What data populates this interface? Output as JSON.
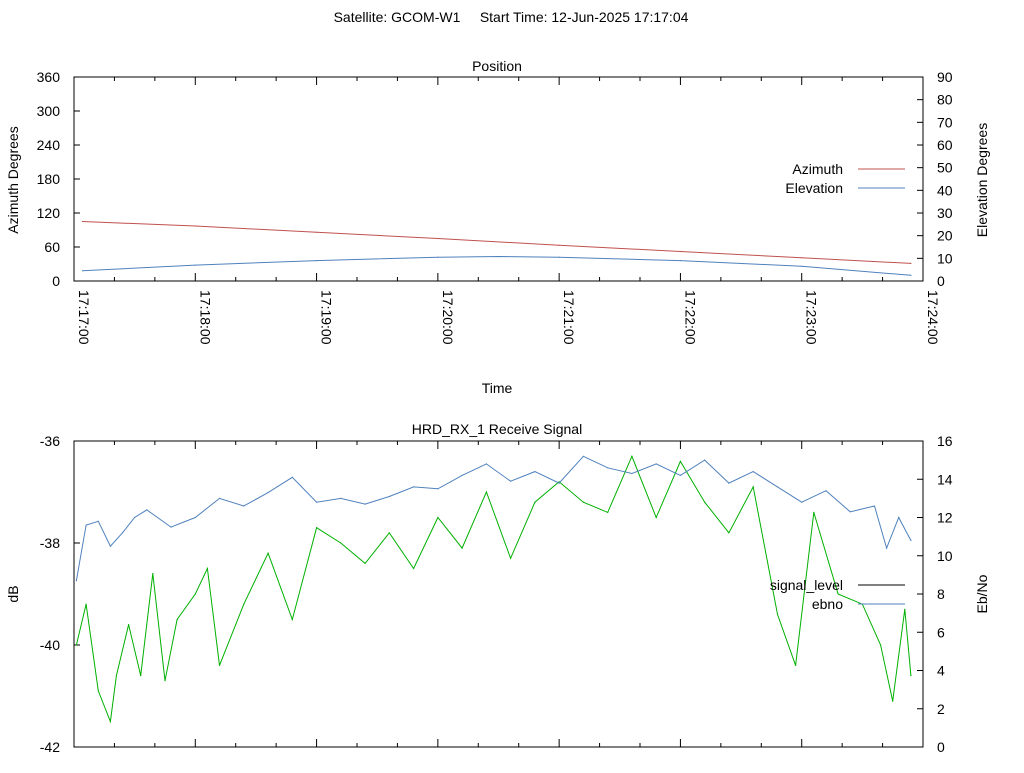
{
  "page": {
    "title": "Satellite: GCOM-W1     Start Time: 12-Jun-2025 17:17:04"
  },
  "chart_data": [
    {
      "type": "line",
      "title": "Position",
      "xlabel": "Time",
      "ylabel": "Azimuth Degrees",
      "y2label": "Elevation Degrees",
      "x_ticks": [
        "17:17:00",
        "17:18:00",
        "17:19:00",
        "17:20:00",
        "17:21:00",
        "17:22:00",
        "17:23:00",
        "17:24:00"
      ],
      "xlim_minutes": [
        0,
        7
      ],
      "ylim": [
        0,
        360
      ],
      "y_ticks": [
        0,
        60,
        120,
        180,
        240,
        300,
        360
      ],
      "y2lim": [
        0,
        90
      ],
      "y2_ticks": [
        0,
        10,
        20,
        30,
        40,
        50,
        60,
        70,
        80,
        90
      ],
      "legend_position": "right",
      "series": [
        {
          "name": "Azimuth",
          "axis": "y",
          "color": "#c0504d",
          "x_minutes": [
            0.07,
            1,
            2,
            3,
            4,
            5,
            6,
            6.9
          ],
          "values": [
            105,
            97,
            86,
            75,
            63,
            52,
            41,
            31
          ]
        },
        {
          "name": "Elevation",
          "axis": "y2",
          "color": "#4f81bd",
          "x_minutes": [
            0.07,
            1,
            2,
            3,
            3.5,
            4,
            5,
            6,
            6.9
          ],
          "values": [
            4.5,
            7,
            9,
            10.5,
            10.8,
            10.5,
            9,
            6.5,
            2.5
          ]
        }
      ]
    },
    {
      "type": "line",
      "title": "HRD_RX_1 Receive Signal",
      "ylabel": "dB",
      "y2label": "Eb/No",
      "ylim": [
        -42,
        -36
      ],
      "y_ticks": [
        -42,
        -40,
        -38,
        -36
      ],
      "y2lim": [
        0,
        16
      ],
      "y2_ticks": [
        0,
        2,
        4,
        6,
        8,
        10,
        12,
        14,
        16
      ],
      "xlim_minutes": [
        0,
        7
      ],
      "legend_position": "right",
      "series": [
        {
          "name": "signal_level",
          "axis": "y",
          "color": "#00b000",
          "x_minutes": [
            0.02,
            0.1,
            0.2,
            0.3,
            0.35,
            0.45,
            0.55,
            0.65,
            0.75,
            0.85,
            1.0,
            1.1,
            1.2,
            1.4,
            1.6,
            1.8,
            2.0,
            2.2,
            2.4,
            2.6,
            2.8,
            3.0,
            3.2,
            3.4,
            3.6,
            3.8,
            4.0,
            4.2,
            4.4,
            4.6,
            4.8,
            5.0,
            5.2,
            5.4,
            5.6,
            5.8,
            5.95,
            6.1,
            6.3,
            6.5,
            6.65,
            6.75,
            6.85,
            6.9
          ],
          "values": [
            -40.0,
            -39.2,
            -40.9,
            -41.5,
            -40.6,
            -39.6,
            -40.6,
            -38.6,
            -40.7,
            -39.5,
            -39.0,
            -38.5,
            -40.4,
            -39.2,
            -38.2,
            -39.5,
            -37.7,
            -38.0,
            -38.4,
            -37.8,
            -38.5,
            -37.5,
            -38.1,
            -37.0,
            -38.3,
            -37.2,
            -36.8,
            -37.2,
            -37.4,
            -36.3,
            -37.5,
            -36.4,
            -37.2,
            -37.8,
            -36.9,
            -39.4,
            -40.4,
            -37.4,
            -39.0,
            -39.2,
            -40.0,
            -41.1,
            -39.3,
            -40.6
          ]
        },
        {
          "name": "ebno",
          "axis": "y2",
          "color": "#4f81bd",
          "x_minutes": [
            0.02,
            0.1,
            0.2,
            0.3,
            0.4,
            0.5,
            0.6,
            0.8,
            1.0,
            1.2,
            1.4,
            1.6,
            1.8,
            2.0,
            2.2,
            2.4,
            2.6,
            2.8,
            3.0,
            3.2,
            3.4,
            3.6,
            3.8,
            4.0,
            4.2,
            4.4,
            4.6,
            4.8,
            5.0,
            5.2,
            5.4,
            5.6,
            5.8,
            6.0,
            6.2,
            6.4,
            6.6,
            6.7,
            6.8,
            6.9
          ],
          "values": [
            8.7,
            11.6,
            11.8,
            10.5,
            11.2,
            12.0,
            12.4,
            11.5,
            12.0,
            13.0,
            12.6,
            13.3,
            14.1,
            12.8,
            13.0,
            12.7,
            13.1,
            13.6,
            13.5,
            14.2,
            14.8,
            13.9,
            14.4,
            13.8,
            15.2,
            14.6,
            14.3,
            14.8,
            14.2,
            15.0,
            13.8,
            14.4,
            13.6,
            12.8,
            13.4,
            12.3,
            12.6,
            10.4,
            12.0,
            10.8
          ]
        }
      ]
    }
  ]
}
